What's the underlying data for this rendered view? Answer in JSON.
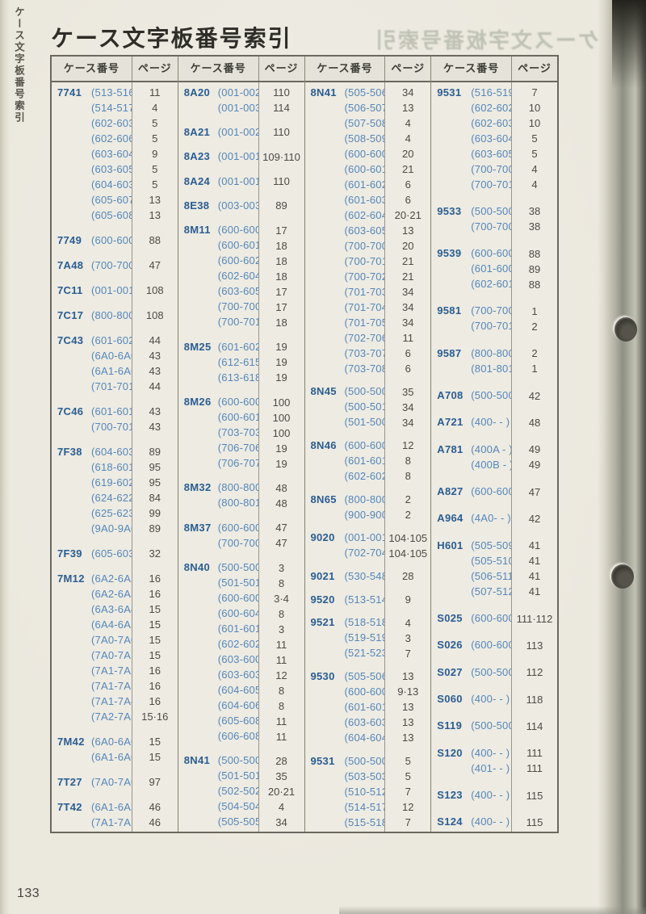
{
  "page": {
    "title": "ケース文字板番号索引",
    "sidebar_label": "ケース文字板番号索引",
    "ghost_title": "ケース文字板番号索引",
    "page_number": "133",
    "colors": {
      "paper": "#ebe8de",
      "code_blue": "#2a5d92",
      "range_blue": "#5587ba",
      "page_gray": "#4c4b44",
      "border": "#6b695f"
    }
  },
  "table": {
    "header": {
      "case_label": "ケース番号",
      "page_label": "ページ"
    },
    "columns": [
      {
        "rows": [
          [
            "7741",
            "(513-516)",
            "11"
          ],
          [
            "",
            "(514-517)",
            "4"
          ],
          [
            "",
            "(602-603)",
            "5"
          ],
          [
            "",
            "(602-606)",
            "5"
          ],
          [
            "",
            "(603-604)",
            "9"
          ],
          [
            "",
            "(603-605)",
            "5"
          ],
          [
            "",
            "(604-603)",
            "5"
          ],
          [
            "",
            "(605-607)",
            "13"
          ],
          [
            "",
            "(605-608)",
            "13"
          ],
          null,
          [
            "7749",
            "(600-600)",
            "88"
          ],
          null,
          [
            "7A48",
            "(700-700)",
            "47"
          ],
          null,
          [
            "7C11",
            "(001-001)",
            "108"
          ],
          null,
          [
            "7C17",
            "(800-800)",
            "108"
          ],
          null,
          [
            "7C43",
            "(601-602)",
            "44"
          ],
          [
            "",
            "(6A0-6A0)",
            "43"
          ],
          [
            "",
            "(6A1-6A0)",
            "43"
          ],
          [
            "",
            "(701-701)",
            "44"
          ],
          null,
          [
            "7C46",
            "(601-601)",
            "43"
          ],
          [
            "",
            "(700-701)",
            "43"
          ],
          null,
          [
            "7F38",
            "(604-603)",
            "89"
          ],
          [
            "",
            "(618-601)",
            "95"
          ],
          [
            "",
            "(619-602)",
            "95"
          ],
          [
            "",
            "(624-622)",
            "84"
          ],
          [
            "",
            "(625-623)",
            "99"
          ],
          [
            "",
            "(9A0-9A0)",
            "89"
          ],
          null,
          [
            "7F39",
            "(605-603)",
            "32"
          ],
          null,
          [
            "7M12",
            "(6A2-6A2)",
            "16"
          ],
          [
            "",
            "(6A2-6A3)",
            "16"
          ],
          [
            "",
            "(6A3-6A4)",
            "15"
          ],
          [
            "",
            "(6A4-6A5)",
            "15"
          ],
          [
            "",
            "(7A0-7A0)",
            "15"
          ],
          [
            "",
            "(7A0-7A1)",
            "15"
          ],
          [
            "",
            "(7A1-7A2)",
            "16"
          ],
          [
            "",
            "(7A1-7A3)",
            "16"
          ],
          [
            "",
            "(7A1-7A4)",
            "16"
          ],
          [
            "",
            "(7A2-7A5)",
            "15·16"
          ],
          null,
          [
            "7M42",
            "(6A0-6A0)",
            "15"
          ],
          [
            "",
            "(6A1-6A0)",
            "15"
          ],
          null,
          [
            "7T27",
            "(7A0-7A0)",
            "97"
          ],
          null,
          [
            "7T42",
            "(6A1-6A2)",
            "46"
          ],
          [
            "",
            "(7A1-7A2)",
            "46"
          ]
        ]
      },
      {
        "rows": [
          [
            "8A20",
            "(001-002)",
            "110"
          ],
          [
            "",
            "(001-003)",
            "114"
          ],
          null,
          [
            "8A21",
            "(001-002)",
            "110"
          ],
          null,
          [
            "8A23",
            "(001-001)",
            "109·110"
          ],
          null,
          [
            "8A24",
            "(001-001)",
            "110"
          ],
          null,
          [
            "8E38",
            "(003-003)",
            "89"
          ],
          null,
          [
            "8M11",
            "(600-600)",
            "17"
          ],
          [
            "",
            "(600-601)",
            "18"
          ],
          [
            "",
            "(600-602)",
            "18"
          ],
          [
            "",
            "(602-604)",
            "18"
          ],
          [
            "",
            "(603-605)",
            "17"
          ],
          [
            "",
            "(700-700)",
            "17"
          ],
          [
            "",
            "(700-701)",
            "18"
          ],
          null,
          [
            "8M25",
            "(601-602)",
            "19"
          ],
          [
            "",
            "(612-615)",
            "19"
          ],
          [
            "",
            "(613-618)",
            "19"
          ],
          null,
          [
            "8M26",
            "(600-600)",
            "100"
          ],
          [
            "",
            "(600-601)",
            "100"
          ],
          [
            "",
            "(703-703)",
            "100"
          ],
          [
            "",
            "(706-706)",
            "19"
          ],
          [
            "",
            "(706-707)",
            "19"
          ],
          null,
          [
            "8M32",
            "(800-800)",
            "48"
          ],
          [
            "",
            "(800-801)",
            "48"
          ],
          null,
          [
            "8M37",
            "(600-600)",
            "47"
          ],
          [
            "",
            "(700-700)",
            "47"
          ],
          null,
          [
            "8N40",
            "(500-500)",
            "3"
          ],
          [
            "",
            "(501-501)",
            "8"
          ],
          [
            "",
            "(600-600)",
            "3·4"
          ],
          [
            "",
            "(600-604)",
            "8"
          ],
          [
            "",
            "(601-601)",
            "3"
          ],
          [
            "",
            "(602-602)",
            "11"
          ],
          [
            "",
            "(603-600)",
            "11"
          ],
          [
            "",
            "(603-603)",
            "12"
          ],
          [
            "",
            "(604-605)",
            "8"
          ],
          [
            "",
            "(604-606)",
            "8"
          ],
          [
            "",
            "(605-608)",
            "11"
          ],
          [
            "",
            "(606-608)",
            "11"
          ],
          null,
          [
            "8N41",
            "(500-500)",
            "28"
          ],
          [
            "",
            "(501-501)",
            "35"
          ],
          [
            "",
            "(502-502)",
            "20·21"
          ],
          [
            "",
            "(504-504)",
            "4"
          ],
          [
            "",
            "(505-505)",
            "34"
          ]
        ]
      },
      {
        "rows": [
          [
            "8N41",
            "(505-506)",
            "34"
          ],
          [
            "",
            "(506-507)",
            "13"
          ],
          [
            "",
            "(507-508)",
            "4"
          ],
          [
            "",
            "(508-509)",
            "4"
          ],
          [
            "",
            "(600-600)",
            "20"
          ],
          [
            "",
            "(600-601)",
            "21"
          ],
          [
            "",
            "(601-602)",
            "6"
          ],
          [
            "",
            "(601-603)",
            "6"
          ],
          [
            "",
            "(602-604)",
            "20·21"
          ],
          [
            "",
            "(603-605)",
            "13"
          ],
          [
            "",
            "(700-700)",
            "20"
          ],
          [
            "",
            "(700-701)",
            "21"
          ],
          [
            "",
            "(700-702)",
            "21"
          ],
          [
            "",
            "(701-703)",
            "34"
          ],
          [
            "",
            "(701-704)",
            "34"
          ],
          [
            "",
            "(701-705)",
            "34"
          ],
          [
            "",
            "(702-706)",
            "11"
          ],
          [
            "",
            "(703-707)",
            "6"
          ],
          [
            "",
            "(703-708)",
            "6"
          ],
          null,
          [
            "8N45",
            "(500-500)",
            "35"
          ],
          [
            "",
            "(500-501)",
            "34"
          ],
          [
            "",
            "(501-500)",
            "34"
          ],
          null,
          [
            "8N46",
            "(600-600)",
            "12"
          ],
          [
            "",
            "(601-601)",
            "8"
          ],
          [
            "",
            "(602-602)",
            "8"
          ],
          null,
          [
            "8N65",
            "(800-800)",
            "2"
          ],
          [
            "",
            "(900-900)",
            "2"
          ],
          null,
          [
            "9020",
            "(001-001)",
            "104·105"
          ],
          [
            "",
            "(702-704)",
            "104·105"
          ],
          null,
          [
            "9021",
            "(530-548)",
            "28"
          ],
          null,
          [
            "9520",
            "(513-514)",
            "9"
          ],
          null,
          [
            "9521",
            "(518-518)",
            "4"
          ],
          [
            "",
            "(519-519)",
            "3"
          ],
          [
            "",
            "(521-523)",
            "7"
          ],
          null,
          [
            "9530",
            "(505-506)",
            "13"
          ],
          [
            "",
            "(600-600)",
            "9·13"
          ],
          [
            "",
            "(601-601)",
            "13"
          ],
          [
            "",
            "(603-603)",
            "13"
          ],
          [
            "",
            "(604-604)",
            "13"
          ],
          null,
          [
            "9531",
            "(500-500)",
            "5"
          ],
          [
            "",
            "(503-503)",
            "5"
          ],
          [
            "",
            "(510-512)",
            "7"
          ],
          [
            "",
            "(514-517)",
            "12"
          ],
          [
            "",
            "(515-518)",
            "7"
          ]
        ]
      },
      {
        "rows": [
          [
            "9531",
            "(516-519)",
            "7"
          ],
          [
            "",
            "(602-602)",
            "10"
          ],
          [
            "",
            "(602-603)",
            "10"
          ],
          [
            "",
            "(603-604)",
            "5"
          ],
          [
            "",
            "(603-605)",
            "5"
          ],
          [
            "",
            "(700-700)",
            "4"
          ],
          [
            "",
            "(700-701)",
            "4"
          ],
          null,
          [
            "9533",
            "(500-500)",
            "38"
          ],
          [
            "",
            "(700-700)",
            "38"
          ],
          null,
          [
            "9539",
            "(600-600)",
            "88"
          ],
          [
            "",
            "(601-600)",
            "89"
          ],
          [
            "",
            "(602-601)",
            "88"
          ],
          null,
          [
            "9581",
            "(700-700)",
            "1"
          ],
          [
            "",
            "(700-701)",
            "2"
          ],
          null,
          [
            "9587",
            "(800-800)",
            "2"
          ],
          [
            "",
            "(801-801)",
            "1"
          ],
          null,
          [
            "A708",
            "(500-500)",
            "42"
          ],
          null,
          [
            "A721",
            "(400-  -  )",
            "48"
          ],
          null,
          [
            "A781",
            "(400A -  )",
            "49"
          ],
          [
            "",
            "(400B -  )",
            "49"
          ],
          null,
          [
            "A827",
            "(600-600)",
            "47"
          ],
          null,
          [
            "A964",
            "(4A0-  -  )",
            "42"
          ],
          null,
          [
            "H601",
            "(505-509)",
            "41"
          ],
          [
            "",
            "(505-510)",
            "41"
          ],
          [
            "",
            "(506-511)",
            "41"
          ],
          [
            "",
            "(507-512)",
            "41"
          ],
          null,
          [
            "S025",
            "(600-600)",
            "111·112"
          ],
          null,
          [
            "S026",
            "(600-600)",
            "113"
          ],
          null,
          [
            "S027",
            "(500-500)",
            "112"
          ],
          null,
          [
            "S060",
            "(400-  -  )",
            "118"
          ],
          null,
          [
            "S119",
            "(500-500)",
            "114"
          ],
          null,
          [
            "S120",
            "(400-  -  )",
            "111"
          ],
          [
            "",
            "(401-  -  )",
            "111"
          ],
          null,
          [
            "S123",
            "(400-  -  )",
            "115"
          ],
          null,
          [
            "S124",
            "(400-  -  )",
            "115"
          ]
        ]
      }
    ]
  }
}
